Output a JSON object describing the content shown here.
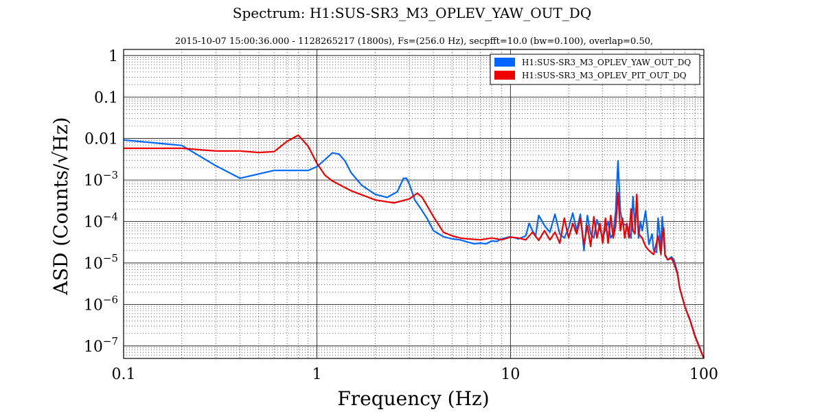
{
  "chart_data": {
    "type": "line",
    "title": "Spectrum: H1:SUS-SR3_M3_OPLEV_YAW_OUT_DQ",
    "subtitle": "2015-10-07 15:00:36.000 - 1128265217 (1800s), Fs=(256.0 Hz), secpfft=10.0 (bw=0.100), overlap=0.50,",
    "xlabel": "Frequency (Hz)",
    "ylabel": "ASD (Counts/√Hz)",
    "xscale": "log",
    "yscale": "log",
    "xlim": [
      0.1,
      100
    ],
    "ylim": [
      5e-08,
      1.4
    ],
    "xticks": [
      {
        "value": 0.1,
        "label": "0.1"
      },
      {
        "value": 1,
        "label": "1"
      },
      {
        "value": 10,
        "label": "10"
      },
      {
        "value": 100,
        "label": "100"
      }
    ],
    "yticks": [
      {
        "value": 1,
        "label": "1",
        "base": "",
        "exp": ""
      },
      {
        "value": 0.1,
        "label": "0.1",
        "base": "",
        "exp": ""
      },
      {
        "value": 0.01,
        "label": "0.01",
        "base": "",
        "exp": ""
      },
      {
        "value": 0.001,
        "label": "",
        "base": "10",
        "exp": "−3"
      },
      {
        "value": 0.0001,
        "label": "",
        "base": "10",
        "exp": "−4"
      },
      {
        "value": 1e-05,
        "label": "",
        "base": "10",
        "exp": "−5"
      },
      {
        "value": 1e-06,
        "label": "",
        "base": "10",
        "exp": "−6"
      },
      {
        "value": 1e-07,
        "label": "",
        "base": "10",
        "exp": "−7"
      }
    ],
    "grid": true,
    "legend_position": "top-right",
    "series": [
      {
        "name": "H1:SUS-SR3_M3_OPLEV_YAW_OUT_DQ",
        "color": "#0066ff",
        "x": [
          0.1,
          0.2,
          0.3,
          0.4,
          0.6,
          0.8,
          0.9,
          1.0,
          1.1,
          1.2,
          1.3,
          1.4,
          1.5,
          1.7,
          2.0,
          2.3,
          2.6,
          2.8,
          2.9,
          3.0,
          3.2,
          3.4,
          3.7,
          4.0,
          4.5,
          5.0,
          5.5,
          6.0,
          6.5,
          7.0,
          7.5,
          8.0,
          8.5,
          9.0,
          10,
          11,
          12,
          12.5,
          13,
          13.5,
          14,
          15,
          16,
          17,
          18,
          19,
          20,
          21,
          22,
          23,
          24,
          25,
          26,
          27,
          28,
          30,
          32,
          33,
          34,
          35,
          36,
          37,
          38,
          40,
          42,
          43,
          44,
          45,
          46,
          47,
          48,
          50,
          52,
          54,
          55,
          57,
          58,
          60,
          61,
          63,
          65,
          68,
          70,
          73,
          75,
          80,
          85,
          90,
          95,
          100
        ],
        "values": [
          0.0092,
          0.0068,
          0.0022,
          0.0011,
          0.0017,
          0.0017,
          0.0017,
          0.0021,
          0.0031,
          0.0045,
          0.0042,
          0.0028,
          0.0015,
          0.00075,
          0.00045,
          0.00038,
          0.00052,
          0.0011,
          0.0011,
          0.0008,
          0.00033,
          0.00022,
          0.00012,
          6e-05,
          4.3e-05,
          3.8e-05,
          3.6e-05,
          3.2e-05,
          2.9e-05,
          3e-05,
          2.9e-05,
          3.4e-05,
          3.3e-05,
          3.8e-05,
          4.3e-05,
          3.8e-05,
          4.5e-05,
          9e-05,
          6e-05,
          4.5e-05,
          0.00014,
          8e-05,
          5.5e-05,
          0.00015,
          5e-05,
          4e-05,
          7e-05,
          0.00016,
          6e-05,
          0.00015,
          2e-05,
          0.00014,
          5e-05,
          4e-05,
          0.00011,
          4e-05,
          0.0001,
          4e-05,
          5e-05,
          0.00018,
          0.0029,
          0.00018,
          9e-05,
          8e-05,
          4e-05,
          0.0004,
          8e-05,
          0.00032,
          4e-05,
          0.0001,
          6e-05,
          0.00018,
          2.8e-05,
          5e-05,
          2e-05,
          1.8e-05,
          0.00012,
          2.5e-05,
          0.00013,
          1.5e-05,
          1.2e-05,
          1.4e-05,
          1.2e-05,
          6e-06,
          2.5e-06,
          8.5e-07,
          4.2e-07,
          1.8e-07,
          9.5e-08,
          5e-08
        ]
      },
      {
        "name": "H1:SUS-SR3_M3_OPLEV_PIT_OUT_DQ",
        "color": "#ee0000",
        "x": [
          0.1,
          0.2,
          0.3,
          0.4,
          0.5,
          0.6,
          0.7,
          0.8,
          0.9,
          1.0,
          1.1,
          1.2,
          1.5,
          2.0,
          2.5,
          3.0,
          3.3,
          3.5,
          4.0,
          4.5,
          5.0,
          5.5,
          6.0,
          7.0,
          8.0,
          9.0,
          10,
          11,
          12,
          13,
          14,
          15,
          16,
          17,
          18,
          19,
          20,
          21,
          22,
          23,
          24,
          25,
          26,
          27,
          28,
          29,
          30,
          31,
          32,
          33,
          34,
          35,
          36,
          37,
          38,
          39,
          40,
          41,
          42,
          43,
          44,
          45,
          46,
          48,
          50,
          52,
          55,
          58,
          60,
          61,
          62,
          63,
          65,
          68,
          70,
          73,
          75,
          80,
          85,
          90,
          95,
          100
        ],
        "values": [
          0.0058,
          0.0058,
          0.005,
          0.005,
          0.0046,
          0.0048,
          0.0085,
          0.012,
          0.0065,
          0.0025,
          0.0013,
          0.00095,
          0.00055,
          0.00033,
          0.00028,
          0.00035,
          0.00048,
          0.00038,
          0.00013,
          5.5e-05,
          4.5e-05,
          4e-05,
          3.8e-05,
          3.6e-05,
          4e-05,
          3.6e-05,
          4.2e-05,
          4e-05,
          3.6e-05,
          5.5e-05,
          3.5e-05,
          6e-05,
          3.6e-05,
          5.5e-05,
          3e-05,
          0.00012,
          4e-05,
          9e-05,
          5e-05,
          0.00012,
          2.8e-05,
          8e-05,
          2.5e-05,
          0.00013,
          4e-05,
          9e-05,
          3e-05,
          0.00012,
          3e-05,
          0.00014,
          4e-05,
          8e-05,
          0.0005,
          6e-05,
          0.00012,
          4e-05,
          9e-05,
          4e-05,
          0.0002,
          6e-05,
          5e-05,
          0.00045,
          5e-05,
          4e-05,
          2.5e-05,
          2e-05,
          1.6e-05,
          4.5e-05,
          1.6e-05,
          4.5e-05,
          7e-05,
          1.6e-05,
          1.2e-05,
          1.3e-05,
          1e-05,
          5.5e-06,
          2.5e-06,
          8.5e-07,
          4e-07,
          1.7e-07,
          9e-08,
          5e-08
        ]
      }
    ]
  }
}
